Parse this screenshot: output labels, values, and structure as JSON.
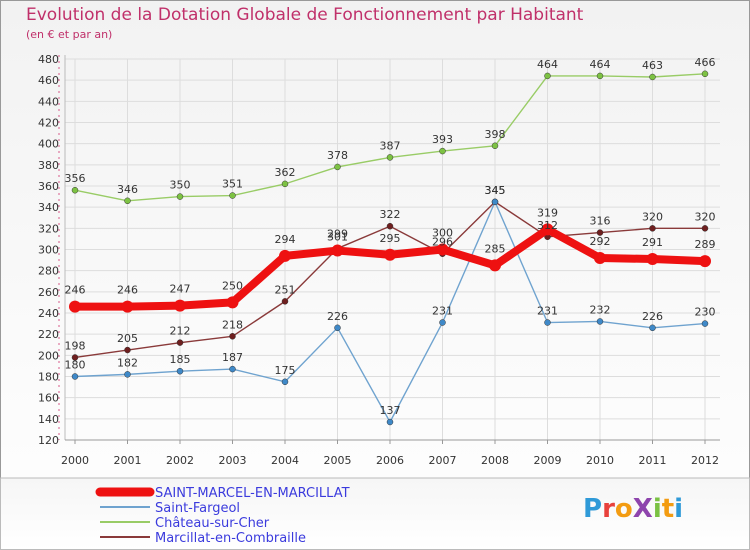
{
  "chart_data": {
    "type": "line",
    "title": "Evolution de la Dotation Globale de Fonctionnement par Habitant",
    "subtitle": "(en € et par an)",
    "x": [
      "2000",
      "2001",
      "2002",
      "2003",
      "2004",
      "2005",
      "2006",
      "2007",
      "2008",
      "2009",
      "2010",
      "2011",
      "2012"
    ],
    "ylim": [
      120,
      480
    ],
    "yticks": [
      120,
      140,
      160,
      180,
      200,
      220,
      240,
      260,
      280,
      300,
      320,
      340,
      360,
      380,
      400,
      420,
      440,
      460,
      480
    ],
    "grid": true,
    "series": [
      {
        "name": "Château-sur-Cher",
        "color": "#99cc66",
        "point_color": "#7dc243",
        "values": [
          356,
          346,
          350,
          351,
          362,
          378,
          387,
          393,
          398,
          464,
          464,
          463,
          466
        ]
      },
      {
        "name": "Marcillat-en-Combraille",
        "color": "#8a3a3a",
        "point_color": "#6e1f1f",
        "values": [
          198,
          205,
          212,
          218,
          251,
          301,
          322,
          296,
          345,
          312,
          316,
          320,
          320
        ]
      },
      {
        "name": "Saint-Fargeol",
        "color": "#6fa3cf",
        "point_color": "#3f89c8",
        "values": [
          180,
          182,
          185,
          187,
          175,
          226,
          137,
          231,
          345,
          231,
          232,
          226,
          230
        ]
      },
      {
        "name": "SAINT-MARCEL-EN-MARCILLAT",
        "color": "#ee1111",
        "point_color": "#ee1111",
        "thick": true,
        "values": [
          246,
          246,
          247,
          250,
          294,
          299,
          295,
          300,
          285,
          319,
          292,
          291,
          289
        ]
      }
    ],
    "legend": {
      "placement": "bottom-left",
      "order": [
        "SAINT-MARCEL-EN-MARCILLAT",
        "Saint-Fargeol",
        "Château-sur-Cher",
        "Marcillat-en-Combraille"
      ]
    }
  },
  "logo": {
    "text": "ProXiti",
    "letters": [
      "P",
      "r",
      "o",
      "X",
      "i",
      "t",
      "i"
    ],
    "colors": [
      "#2f9ad8",
      "#e8413c",
      "#f39c12",
      "#8e44ad",
      "#7ac143",
      "#f39c12",
      "#2f9ad8"
    ]
  }
}
